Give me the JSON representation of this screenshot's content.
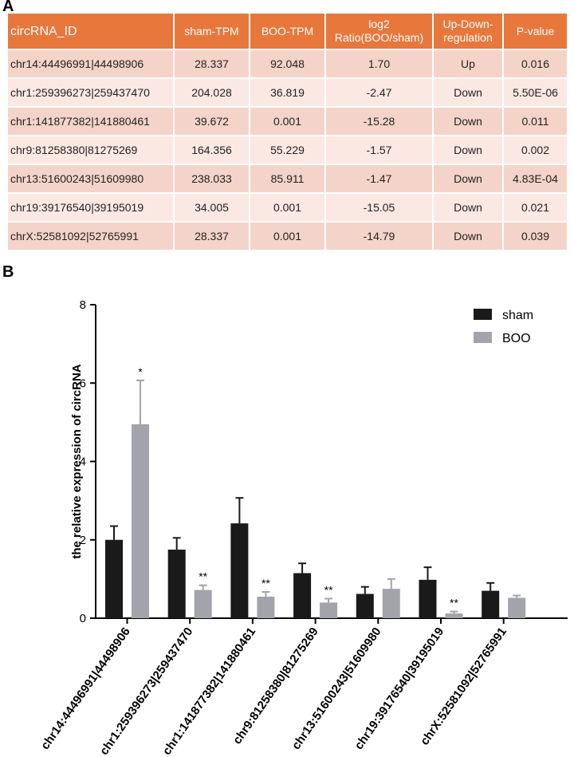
{
  "panels": {
    "a": "A",
    "b": "B"
  },
  "table": {
    "headers": [
      "circRNA_ID",
      "sham-TPM",
      "BOO-TPM",
      "log2 Ratio(BOO/sham)",
      "Up-Down-regulation",
      "P-value"
    ],
    "header_lines": [
      [
        "circRNA_ID"
      ],
      [
        "sham-TPM"
      ],
      [
        "BOO-TPM"
      ],
      [
        "log2",
        "Ratio(BOO/sham)"
      ],
      [
        "Up-Down-",
        "regulation"
      ],
      [
        "P-value"
      ]
    ],
    "rows": [
      [
        "chr14:44496991|44498906",
        "28.337",
        "92.048",
        "1.70",
        "Up",
        "0.016"
      ],
      [
        "chr1:259396273|259437470",
        "204.028",
        "36.819",
        "-2.47",
        "Down",
        "5.50E-06"
      ],
      [
        "chr1:141877382|141880461",
        "39.672",
        "0.001",
        "-15.28",
        "Down",
        "0.011"
      ],
      [
        "chr9:81258380|81275269",
        "164.356",
        "55.229",
        "-1.57",
        "Down",
        "0.002"
      ],
      [
        "chr13:51600243|51609980",
        "238.033",
        "85.911",
        "-1.47",
        "Down",
        "4.83E-04"
      ],
      [
        "chr19:39176540|39195019",
        "34.005",
        "0.001",
        "-15.05",
        "Down",
        "0.021"
      ],
      [
        "chrX:52581092|52765991",
        "28.337",
        "0.001",
        "-14.79",
        "Down",
        "0.039"
      ]
    ],
    "colors": {
      "header": "#e8773c",
      "row_odd": "#f4d4c8",
      "row_even": "#fbe8e2"
    }
  },
  "chart_data": {
    "type": "bar",
    "title": "",
    "xlabel": "",
    "ylabel": "the relative expression of  circRNA",
    "ylim": [
      0,
      8
    ],
    "yticks": [
      0,
      2,
      4,
      6,
      8
    ],
    "categories": [
      "chr14:44496991|44498906",
      "chr1:259396273|259437470",
      "chr1:141877382|141880461",
      "chr9:81258380|81275269",
      "chr13:51600243|51609980",
      "chr19:39176540|39195019",
      "chrX:52581092|52765991"
    ],
    "series": [
      {
        "name": "sham",
        "color": "#1a1a1a",
        "values": [
          2.0,
          1.75,
          2.42,
          1.15,
          0.62,
          0.98,
          0.7
        ],
        "errors": [
          0.35,
          0.3,
          0.65,
          0.25,
          0.18,
          0.32,
          0.2
        ],
        "annotations": [
          "",
          "",
          "",
          "",
          "",
          "",
          ""
        ]
      },
      {
        "name": "BOO",
        "color": "#a3a3ab",
        "values": [
          4.95,
          0.72,
          0.55,
          0.4,
          0.75,
          0.12,
          0.52
        ],
        "errors": [
          1.12,
          0.12,
          0.12,
          0.1,
          0.25,
          0.05,
          0.06
        ],
        "annotations": [
          "*",
          "**",
          "**",
          "**",
          "",
          "**",
          ""
        ]
      }
    ],
    "legend_position": "top-right"
  }
}
